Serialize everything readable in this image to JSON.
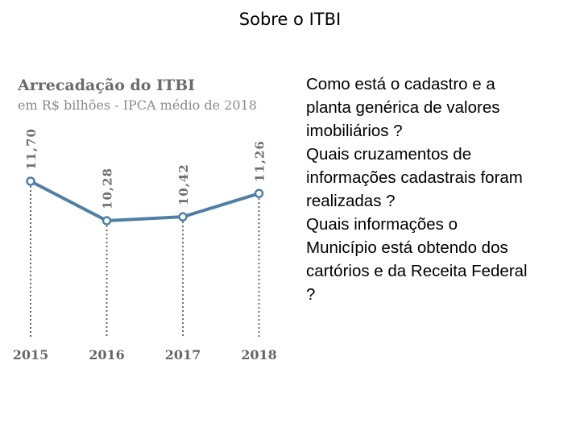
{
  "slide": {
    "title": "Sobre o ITBI"
  },
  "colors": {
    "line": "#4f7fa6",
    "marker_fill": "#ffffff",
    "dotted": "#666666",
    "label": "#6f6f6f",
    "year": "#666666"
  },
  "chart_data": {
    "type": "line",
    "title": "Arrecadação do ITBI",
    "subtitle": "em R$ bilhões - IPCA médio de 2018",
    "categories": [
      "2015",
      "2016",
      "2017",
      "2018"
    ],
    "values": [
      11.7,
      10.28,
      10.42,
      11.26
    ],
    "data_labels": [
      "11,70",
      "10,28",
      "10,42",
      "11,26"
    ],
    "ylim": [
      9.0,
      12.5
    ],
    "grid": false,
    "drop_lines": "dotted"
  },
  "side_text": {
    "lines": [
      "Como está o cadastro e a",
      "planta genérica de valores",
      "imobiliários ?",
      "Quais cruzamentos de",
      "informações cadastrais foram",
      "realizadas ?",
      "Quais informações o",
      "Município está obtendo dos",
      "cartórios e da Receita Federal",
      "?"
    ]
  }
}
